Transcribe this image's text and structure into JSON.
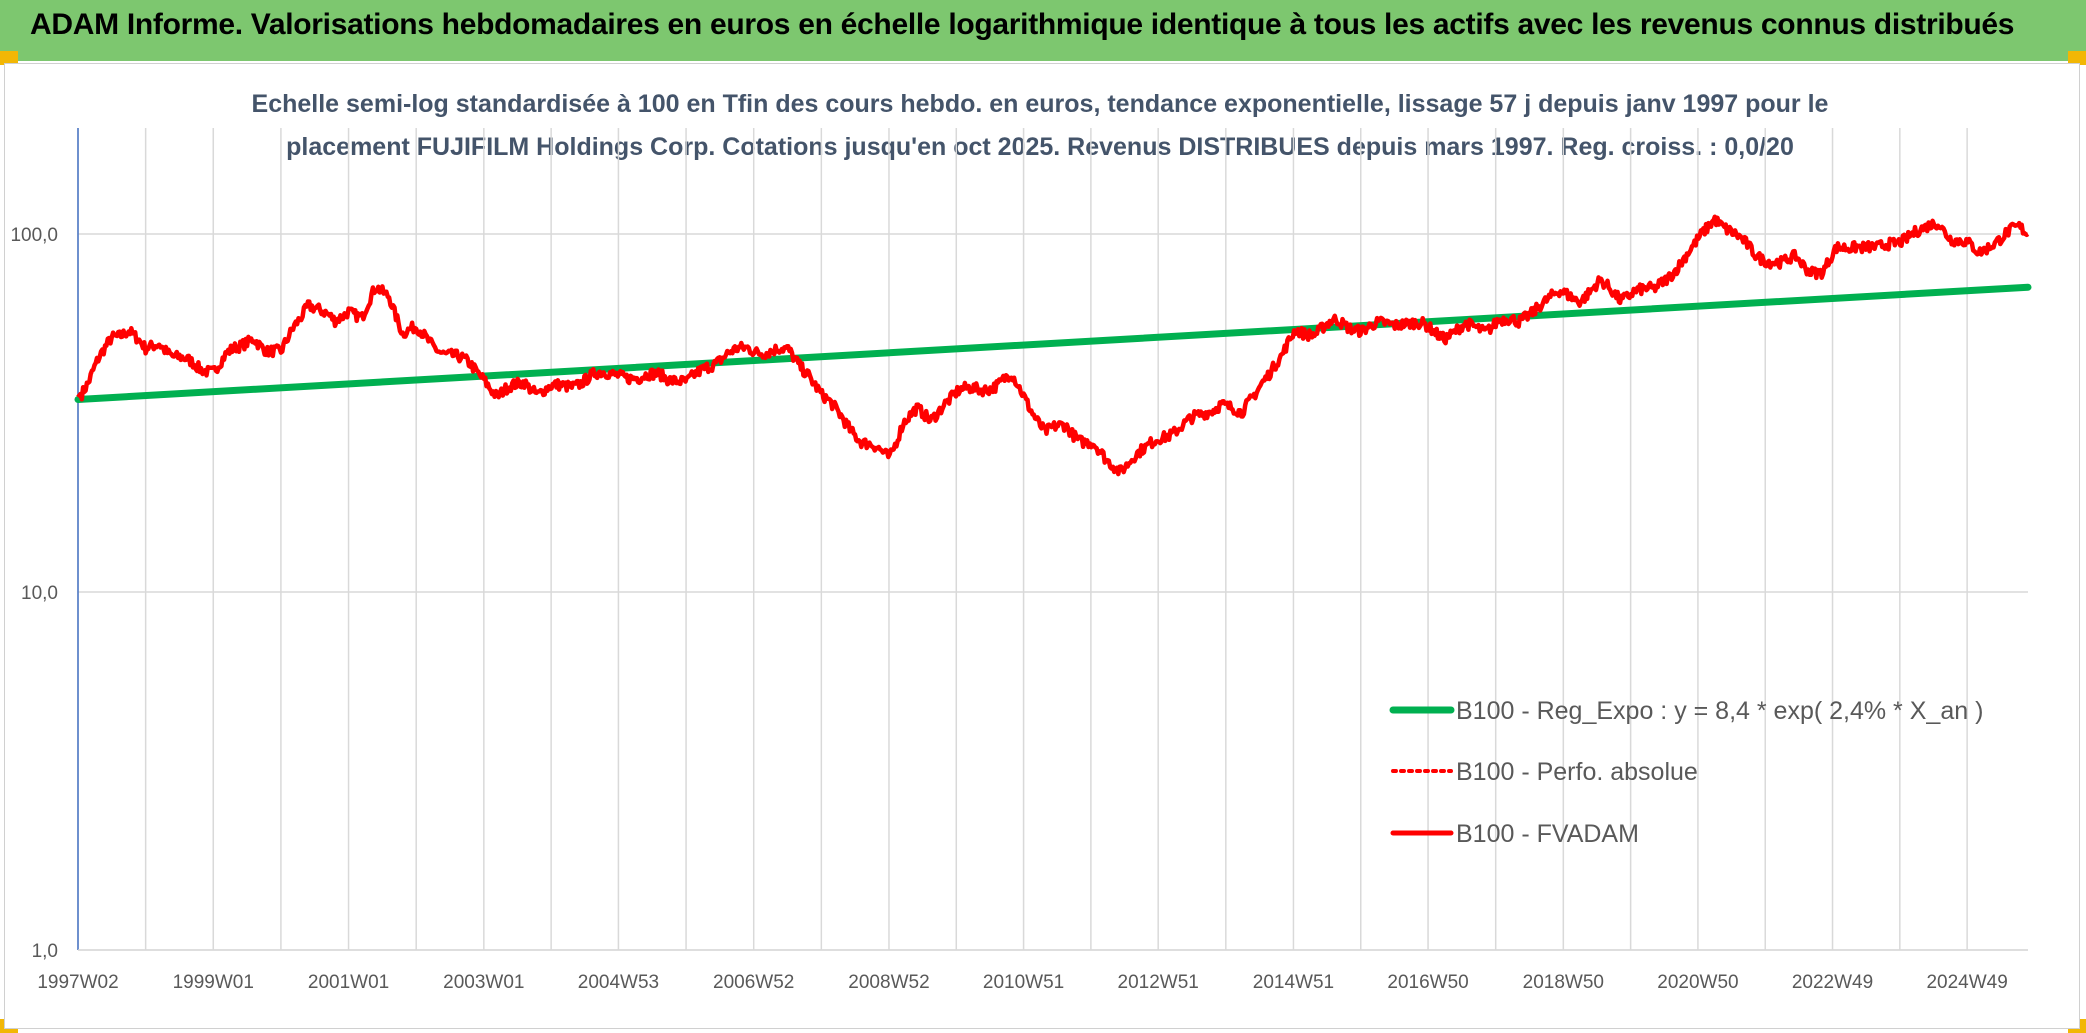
{
  "header": {
    "title": "ADAM Informe. Valorisations hebdomadaires en euros en échelle logarithmique identique à tous les actifs avec les revenus connus distribués"
  },
  "colors": {
    "banner": "#7dc76f",
    "corner": "#f2b705",
    "regression": "#00b050",
    "performance": "#ff0000",
    "fvadam": "#ff0000",
    "grid": "#d9d9d9",
    "axis_text": "#595959",
    "subtitle_text": "#44546a"
  },
  "chart_data": {
    "type": "line",
    "subtitle_line1": "Echelle semi-log standardisée à 100 en Tfin des cours hebdo. en euros, tendance exponentielle, lissage 57 j depuis janv 1997 pour le",
    "subtitle_line2": "placement FUJIFILM Holdings Corp. Cotations jusqu'en oct 2025. Revenus DISTRIBUES depuis mars 1997. Reg. croiss. : 0,0/20",
    "y_scale": "log",
    "ylim": [
      1,
      200
    ],
    "y_ticks": [
      {
        "value": 1,
        "label": "1,0"
      },
      {
        "value": 10,
        "label": "10,0"
      },
      {
        "value": 100,
        "label": "100,0"
      }
    ],
    "xlim": [
      1997.0,
      2025.83
    ],
    "x_ticks": [
      {
        "t": 1997.0,
        "label": "1997W02"
      },
      {
        "t": 1999.0,
        "label": "1999W01"
      },
      {
        "t": 2001.0,
        "label": "2001W01"
      },
      {
        "t": 2003.0,
        "label": "2003W01"
      },
      {
        "t": 2004.99,
        "label": "2004W53"
      },
      {
        "t": 2006.99,
        "label": "2006W52"
      },
      {
        "t": 2008.99,
        "label": "2008W52"
      },
      {
        "t": 2010.98,
        "label": "2010W51"
      },
      {
        "t": 2012.97,
        "label": "2012W51"
      },
      {
        "t": 2014.97,
        "label": "2014W51"
      },
      {
        "t": 2016.96,
        "label": "2016W50"
      },
      {
        "t": 2018.96,
        "label": "2018W50"
      },
      {
        "t": 2020.95,
        "label": "2020W50"
      },
      {
        "t": 2022.94,
        "label": "2022W49"
      },
      {
        "t": 2024.93,
        "label": "2024W49"
      }
    ],
    "grid": true,
    "legend_position": "right",
    "series": [
      {
        "name": "B100 - Reg_Expo : y = 8,4 * exp( 2,4% *  X_an )",
        "style": "solid-thick",
        "x": [
          1997.0,
          2025.83
        ],
        "values": [
          34.5,
          71.0
        ]
      },
      {
        "name": "B100 - Perfo. absolue",
        "style": "dotted",
        "x": [],
        "values": []
      },
      {
        "name": "B100 - FVADAM",
        "style": "solid",
        "x": [
          1997.0,
          1997.15,
          1997.3,
          1997.5,
          1997.75,
          1998.0,
          1998.2,
          1998.4,
          1998.6,
          1998.8,
          1999.0,
          1999.2,
          1999.4,
          1999.6,
          1999.8,
          2000.0,
          2000.2,
          2000.4,
          2000.6,
          2000.8,
          2001.0,
          2001.2,
          2001.4,
          2001.6,
          2001.8,
          2002.0,
          2002.2,
          2002.4,
          2002.6,
          2002.8,
          2003.0,
          2003.2,
          2003.4,
          2003.6,
          2003.8,
          2004.0,
          2004.3,
          2004.6,
          2005.0,
          2005.3,
          2005.6,
          2006.0,
          2006.3,
          2006.6,
          2006.9,
          2007.2,
          2007.5,
          2007.8,
          2008.0,
          2008.3,
          2008.6,
          2008.8,
          2009.0,
          2009.2,
          2009.4,
          2009.6,
          2009.8,
          2010.0,
          2010.3,
          2010.6,
          2010.8,
          2011.0,
          2011.3,
          2011.6,
          2011.8,
          2012.0,
          2012.2,
          2012.4,
          2012.6,
          2012.8,
          2013.0,
          2013.3,
          2013.6,
          2013.9,
          2014.2,
          2014.5,
          2014.8,
          2015.0,
          2015.3,
          2015.6,
          2016.0,
          2016.3,
          2016.6,
          2016.9,
          2017.2,
          2017.5,
          2017.8,
          2018.0,
          2018.3,
          2018.6,
          2018.9,
          2019.2,
          2019.5,
          2019.8,
          2020.0,
          2020.3,
          2020.6,
          2020.9,
          2021.2,
          2021.4,
          2021.6,
          2021.8,
          2022.0,
          2022.2,
          2022.4,
          2022.6,
          2022.8,
          2023.0,
          2023.3,
          2023.6,
          2023.9,
          2024.1,
          2024.3,
          2024.5,
          2024.7,
          2024.9,
          2025.1,
          2025.3,
          2025.5,
          2025.7,
          2025.83
        ],
        "values": [
          35,
          38,
          44,
          52,
          54,
          47,
          50,
          46,
          44,
          42,
          42,
          46,
          48,
          52,
          47,
          46,
          56,
          64,
          60,
          57,
          62,
          58,
          70,
          68,
          53,
          54,
          50,
          47,
          45,
          43,
          40,
          35,
          37,
          39,
          36,
          37,
          38,
          40,
          41,
          39,
          41,
          38,
          43,
          46,
          48,
          47,
          47,
          41,
          35,
          31,
          26,
          25,
          24,
          30,
          32,
          30,
          34,
          36,
          37,
          38,
          40,
          35,
          28,
          29,
          27,
          26,
          23,
          22,
          24,
          25,
          27,
          29,
          31,
          34,
          31,
          39,
          45,
          54,
          53,
          57,
          54,
          56,
          57,
          55,
          52,
          55,
          54,
          58,
          56,
          64,
          68,
          66,
          73,
          66,
          70,
          69,
          80,
          92,
          112,
          103,
          95,
          88,
          85,
          82,
          86,
          80,
          78,
          90,
          94,
          90,
          96,
          100,
          102,
          108,
          98,
          94,
          88,
          95,
          100,
          103,
          100
        ]
      }
    ]
  }
}
